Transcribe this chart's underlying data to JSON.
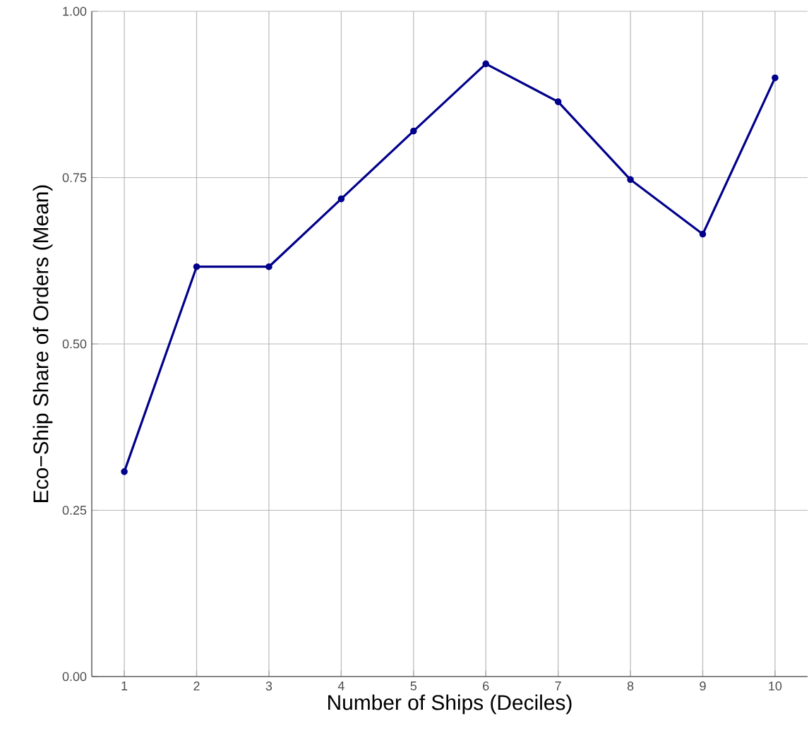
{
  "chart_data": {
    "type": "line",
    "xlabel": "Number of Ships (Deciles)",
    "ylabel": "Eco−Ship Share of Orders (Mean)",
    "x": [
      1,
      2,
      3,
      4,
      5,
      6,
      7,
      8,
      9,
      10
    ],
    "series": [
      {
        "color": "#00008b",
        "values": [
          0.308,
          0.616,
          0.616,
          0.718,
          0.82,
          0.921,
          0.864,
          0.747,
          0.665,
          0.9
        ]
      }
    ],
    "xlim": [
      0.55,
      10.45
    ],
    "ylim": [
      0,
      1
    ],
    "xticks": [
      1,
      2,
      3,
      4,
      5,
      6,
      7,
      8,
      9,
      10
    ],
    "yticks": [
      {
        "value": 0,
        "label": "0.00"
      },
      {
        "value": 0.25,
        "label": "0.25"
      },
      {
        "value": 0.5,
        "label": "0.50"
      },
      {
        "value": 0.75,
        "label": "0.75"
      },
      {
        "value": 1,
        "label": "1.00"
      }
    ],
    "grid": true,
    "marker": "circle",
    "line_style": "solid"
  }
}
